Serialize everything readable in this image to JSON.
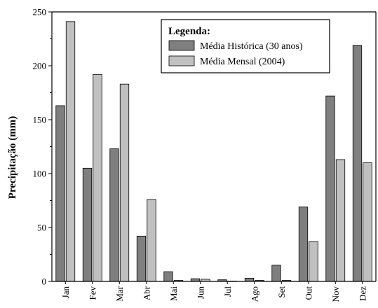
{
  "chart_data": {
    "type": "bar",
    "ylabel": "Precipitação (mm)",
    "xlabel": "",
    "ylim": [
      0,
      250
    ],
    "yticks": [
      0,
      50,
      100,
      150,
      200,
      250
    ],
    "grid": false,
    "categories": [
      "Jan",
      "Fev",
      "Mar",
      "Abr",
      "Mai",
      "Jun",
      "Jul",
      "Ago",
      "Set",
      "Out",
      "Nov",
      "Dez"
    ],
    "legend": {
      "title": "Legenda:",
      "position": "top-right"
    },
    "series": [
      {
        "name": "Média Histórica (30 anos)",
        "color": "#7f7f7f",
        "values": [
          163,
          105,
          123,
          42,
          9,
          2.5,
          1.5,
          3,
          15,
          69,
          172,
          219
        ]
      },
      {
        "name": "Média Mensal (2004)",
        "color": "#c0c0c0",
        "values": [
          241,
          192,
          183,
          76,
          1,
          2,
          0.3,
          1,
          1,
          37,
          113,
          110
        ]
      }
    ]
  }
}
